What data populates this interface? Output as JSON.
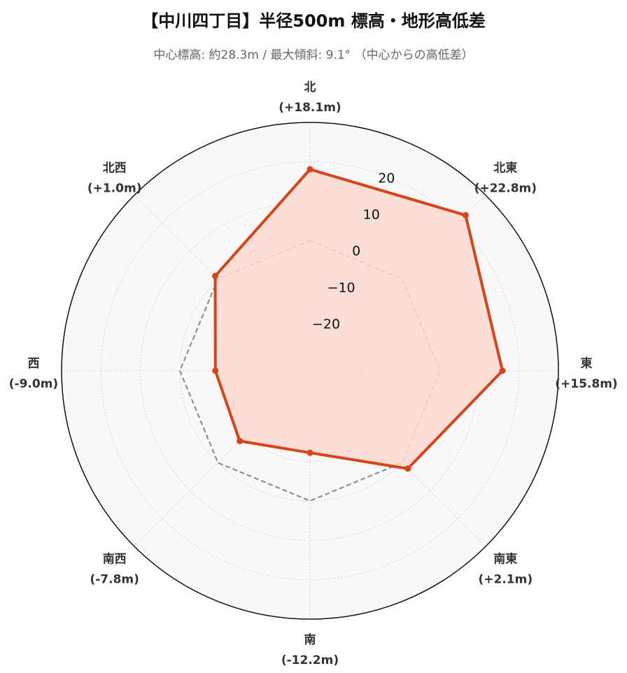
{
  "title": "【中川四丁目】半径500m 標高・地形高低差",
  "subtitle": "中心標高: 約28.3m / 最大傾斜: 9.1° （中心からの高低差）",
  "colors": {
    "series": "#d9431a",
    "fill": "#fcd9cf",
    "reference": "#888888",
    "background": "#f9f9f9",
    "grid": "#cccccc"
  },
  "chart_data": {
    "type": "radar",
    "title": "【中川四丁目】半径500m 標高・地形高低差",
    "subtitle": "中心標高: 約28.3m / 最大傾斜: 9.1° （中心からの高低差）",
    "categories": [
      "北",
      "北東",
      "東",
      "南東",
      "南",
      "南西",
      "西",
      "北西"
    ],
    "category_labels": [
      "(+18.1m)",
      "(+22.8m)",
      "(+15.8m)",
      "(+2.1m)",
      "(-12.2m)",
      "(-7.8m)",
      "(-9.0m)",
      "(+1.0m)"
    ],
    "series": [
      {
        "values": [
          18.1,
          22.8,
          15.8,
          2.1,
          -12.2,
          -7.8,
          -9.0,
          1.0
        ]
      }
    ],
    "reference_line": {
      "value": 0,
      "style": "dashed"
    },
    "rlim": [
      -33,
      30
    ],
    "r_ticks": [
      -20,
      -10,
      0,
      10,
      20
    ],
    "r_tick_labels": [
      "−20",
      "−10",
      "0",
      "10",
      "20"
    ],
    "grid": true,
    "legend": "none"
  }
}
